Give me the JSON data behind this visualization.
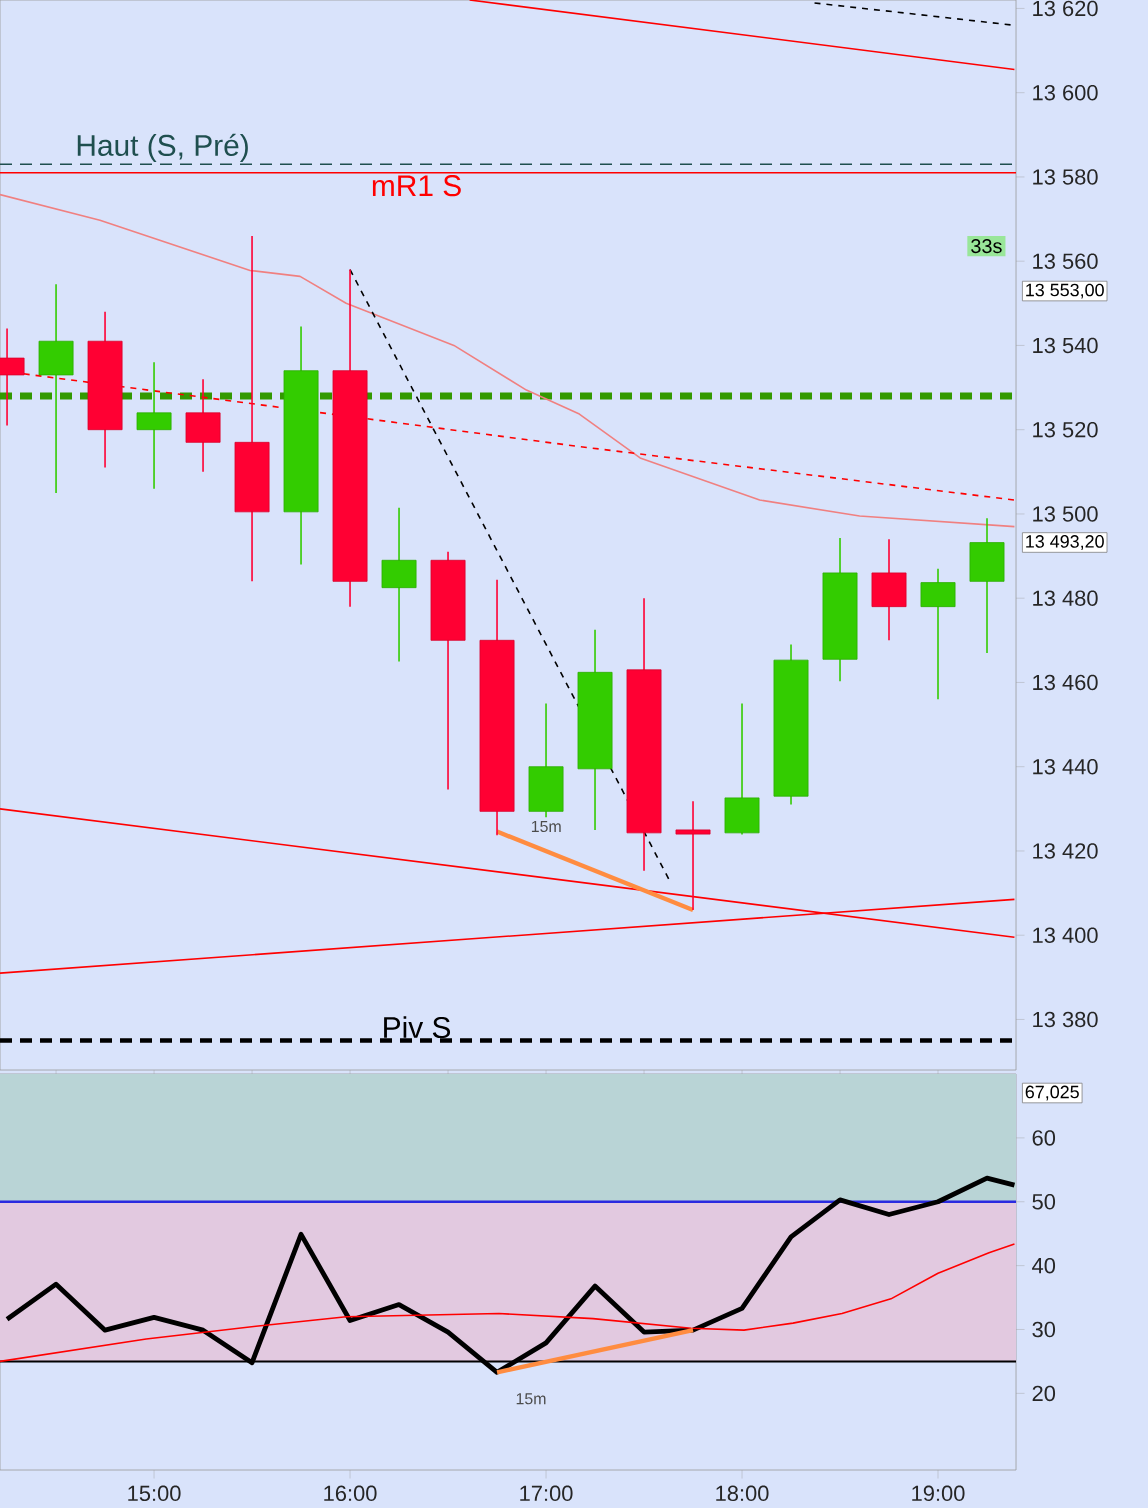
{
  "chart_data": [
    {
      "type": "candlestick",
      "x": [
        14.25,
        14.5,
        14.75,
        15,
        15.25,
        15.5,
        15.75,
        16,
        16.25,
        16.5,
        16.75,
        17,
        17.25,
        17.5,
        17.75,
        18,
        18.25,
        18.5,
        18.75,
        19,
        19.25
      ],
      "ohlc": [
        [
          13537,
          13544,
          13521,
          13533
        ],
        [
          13533,
          13554.5,
          13505,
          13541
        ],
        [
          13541,
          13548,
          13511,
          13520
        ],
        [
          13520,
          13536,
          13506,
          13524
        ],
        [
          13524,
          13532,
          13510,
          13517
        ],
        [
          13517,
          13566,
          13484,
          13500.5
        ],
        [
          13500.5,
          13544.5,
          13488,
          13534
        ],
        [
          13534,
          13558,
          13478,
          13484
        ],
        [
          13482.5,
          13501.5,
          13465,
          13489
        ],
        [
          13489,
          13491,
          13434.6,
          13470
        ],
        [
          13470,
          13484.4,
          13423.7,
          13429.4
        ],
        [
          13429.4,
          13455,
          13428,
          13440
        ],
        [
          13439.5,
          13472.5,
          13425,
          13462.4
        ],
        [
          13463,
          13480,
          13415.3,
          13424.3
        ],
        [
          13425,
          13431.8,
          13406,
          13424
        ],
        [
          13424.3,
          13455,
          13423.9,
          13432.6
        ],
        [
          13433,
          13469,
          13431,
          13465.3
        ],
        [
          13465.5,
          13494.3,
          13460.3,
          13486
        ],
        [
          13486,
          13494,
          13470,
          13478
        ],
        [
          13478,
          13487,
          13456,
          13483.7
        ],
        [
          13484,
          13499,
          13467,
          13493.2
        ]
      ],
      "colors": [
        "#ff0033",
        "#33cc00",
        "#ff0033",
        "#33cc00",
        "#ff0033",
        "#ff0033",
        "#33cc00",
        "#ff0033",
        "#33cc00",
        "#ff0033",
        "#ff0033",
        "#33cc00",
        "#33cc00",
        "#ff0033",
        "#ff0033",
        "#33cc00",
        "#33cc00",
        "#33cc00",
        "#ff0033",
        "#33cc00",
        "#33cc00"
      ],
      "series": [
        {
          "type": "line",
          "color": "#f08080",
          "x": [
            14.214,
            14.724,
            15.49,
            15.745,
            15.98,
            16.53,
            16.9,
            17.17,
            17.48,
            18.09,
            18.6,
            19.39
          ],
          "values": [
            13575.8,
            13569.7,
            13557.8,
            13556.4,
            13550,
            13540,
            13529.4,
            13523.7,
            13513.3,
            13503.3,
            13499.5,
            13497
          ]
        },
        {
          "type": "line",
          "color": "#ff0000",
          "line_style": "dashed",
          "x": [
            14.214,
            17.17,
            19.39
          ],
          "values": [
            13534,
            13516,
            13503.3
          ]
        },
        {
          "type": "line",
          "color": "#ff0000",
          "x": [
            16.61,
            19.39
          ],
          "values": [
            13622,
            13605.5
          ]
        },
        {
          "type": "line",
          "color": "#000000",
          "line_style": "dashed",
          "x": [
            18.37,
            19.39
          ],
          "values": [
            13621.3,
            13616
          ]
        },
        {
          "type": "line",
          "color": "#ff0000",
          "x": [
            14.214,
            19.39
          ],
          "values": [
            13430,
            13399.5
          ]
        },
        {
          "type": "line",
          "color": "#ff0000",
          "x": [
            14.214,
            19.39
          ],
          "values": [
            13391,
            13408.5
          ]
        },
        {
          "type": "line",
          "color": "#000000",
          "line_style": "dashed",
          "x": [
            16.0,
            17.63
          ],
          "values": [
            13558,
            13413
          ]
        },
        {
          "type": "line",
          "color": "#ff8c40",
          "x": [
            16.75,
            17.75
          ],
          "values": [
            13424.6,
            13406
          ]
        }
      ],
      "xlim": [
        14.214,
        19.398
      ],
      "ylim": [
        13368,
        13622
      ],
      "yticks": [
        {
          "value": 13380,
          "label": "13 380"
        },
        {
          "value": 13400,
          "label": "13 400"
        },
        {
          "value": 13420,
          "label": "13 420"
        },
        {
          "value": 13440,
          "label": "13 440"
        },
        {
          "value": 13460,
          "label": "13 460"
        },
        {
          "value": 13480,
          "label": "13 480"
        },
        {
          "value": 13500,
          "label": "13 500"
        },
        {
          "value": 13520,
          "label": "13 520"
        },
        {
          "value": 13540,
          "label": "13 540"
        },
        {
          "value": 13560,
          "label": "13 560"
        },
        {
          "value": 13580,
          "label": "13 580"
        },
        {
          "value": 13600,
          "label": "13 600"
        },
        {
          "value": 13620,
          "label": "13 620"
        }
      ],
      "tick_labels": "y",
      "ref_lines": [
        {
          "axis": "y",
          "value": 13583,
          "label": "Haut (S, Pré)",
          "color": "#1f4f4f",
          "line_style": "dashed"
        },
        {
          "axis": "y",
          "value": 13581,
          "label": "mR1 S",
          "color": "#ff0000"
        },
        {
          "axis": "y",
          "value": 13528,
          "color": "#339900",
          "line_style": "dashed"
        },
        {
          "axis": "y",
          "value": 13375,
          "label": "Piv S",
          "color": "#000000",
          "line_style": "dashed"
        }
      ],
      "annotations": [
        "33s",
        "13 553,00",
        "13 493,20",
        "15m"
      ]
    },
    {
      "type": "line",
      "series": [
        {
          "color": "#000000",
          "x": [
            14.25,
            14.5,
            14.75,
            15,
            15.25,
            15.5,
            15.75,
            16,
            16.25,
            16.5,
            16.75,
            17,
            17.25,
            17.5,
            17.75,
            18,
            18.25,
            18.5,
            18.75,
            19,
            19.25,
            19.39
          ],
          "values": [
            31.6,
            37.1,
            29.9,
            31.9,
            29.9,
            24.8,
            44.9,
            31.4,
            33.9,
            29.6,
            23.3,
            27.9,
            36.8,
            29.6,
            29.9,
            33.3,
            44.5,
            50.3,
            48.0,
            50.0,
            53.7,
            52.6
          ]
        },
        {
          "color": "#ff0000",
          "x": [
            14.214,
            14.96,
            15.52,
            15.98,
            16.76,
            17.24,
            17.74,
            18.01,
            18.26,
            18.51,
            18.76,
            19.0,
            19.26,
            19.39
          ],
          "values": [
            25.0,
            28.5,
            30.5,
            32.0,
            32.5,
            31.7,
            30.2,
            29.9,
            31.0,
            32.5,
            34.8,
            38.8,
            42.0,
            43.4
          ]
        },
        {
          "color": "#ff8c40",
          "x": [
            16.75,
            17.75
          ],
          "values": [
            23.3,
            29.9
          ]
        }
      ],
      "xlim": [
        14.214,
        19.398
      ],
      "ylim": [
        8,
        70
      ],
      "xticks": [
        {
          "value": 15,
          "label": "15:00"
        },
        {
          "value": 16,
          "label": "16:00"
        },
        {
          "value": 17,
          "label": "17:00"
        },
        {
          "value": 18,
          "label": "18:00"
        },
        {
          "value": 19,
          "label": "19:00"
        }
      ],
      "yticks": [
        20,
        30,
        40,
        50,
        60
      ],
      "bands": [
        {
          "axis": "y",
          "from": 50,
          "to": 70,
          "color": "#b9d4d6"
        },
        {
          "axis": "y",
          "from": 25,
          "to": 50,
          "color": "#e2c9e0"
        }
      ],
      "ref_lines": [
        {
          "axis": "y",
          "value": 50,
          "color": "#2a2ae0"
        },
        {
          "axis": "y",
          "value": 25,
          "color": "#000000"
        }
      ],
      "annotations": [
        "67,025",
        "15m"
      ]
    }
  ]
}
